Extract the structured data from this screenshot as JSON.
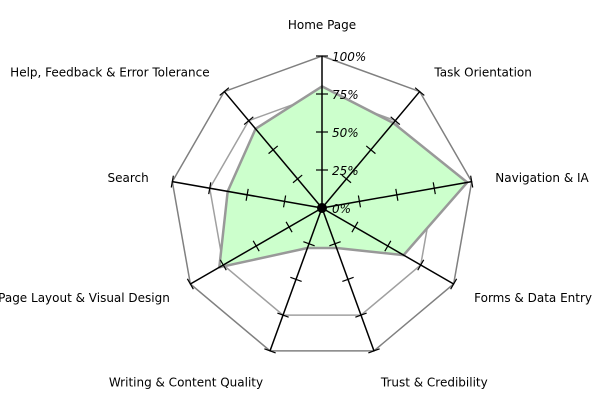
{
  "chart_data": {
    "type": "radar",
    "categories": [
      "Home Page",
      "Task Orientation",
      "Navigation & IA",
      "Forms & Data Entry",
      "Trust & Credibility",
      "Writing & Content Quality",
      "Page Layout & Visual Design",
      "Search",
      "Help, Feedback & Error Tolerance"
    ],
    "series": [
      {
        "values": [
          80,
          73,
          97,
          62,
          28,
          28,
          78,
          63,
          68
        ]
      }
    ],
    "r_range": [
      0,
      100
    ],
    "r_ticks": [
      "0%",
      "25%",
      "50%",
      "75%",
      "100%"
    ],
    "grid": true,
    "colors": {
      "fill": "#ccffcc",
      "series_stroke": "#999999",
      "grid_outer": "#808080",
      "grid_inner": "#a0a0a0",
      "axes": "#000000"
    }
  }
}
